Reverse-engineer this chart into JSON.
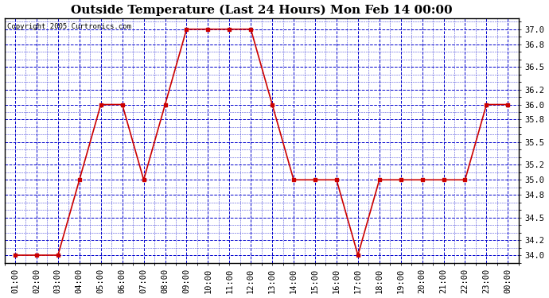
{
  "title": "Outside Temperature (Last 24 Hours) Mon Feb 14 00:00",
  "copyright": "Copyright 2005 Curtronics.com",
  "x_labels": [
    "01:00",
    "02:00",
    "03:00",
    "04:00",
    "05:00",
    "06:00",
    "07:00",
    "08:00",
    "09:00",
    "10:00",
    "11:00",
    "12:00",
    "13:00",
    "14:00",
    "15:00",
    "16:00",
    "17:00",
    "18:00",
    "19:00",
    "20:00",
    "21:00",
    "22:00",
    "23:00",
    "00:00"
  ],
  "y_values": [
    34.0,
    34.0,
    34.0,
    35.0,
    36.0,
    36.0,
    35.0,
    36.0,
    37.0,
    37.0,
    37.0,
    37.0,
    36.0,
    35.0,
    35.0,
    35.0,
    34.0,
    35.0,
    35.0,
    35.0,
    35.0,
    35.0,
    36.0,
    36.0
  ],
  "ylim": [
    33.9,
    37.15
  ],
  "y_ticks": [
    34.0,
    34.2,
    34.5,
    34.8,
    35.0,
    35.2,
    35.5,
    35.8,
    36.0,
    36.2,
    36.5,
    36.8,
    37.0
  ],
  "line_color": "#cc0000",
  "marker": "s",
  "marker_size": 2.5,
  "background_color": "#ffffff",
  "plot_bg_color": "#ffffff",
  "grid_color": "#0000cc",
  "title_fontsize": 11,
  "tick_fontsize": 7.5,
  "copyright_fontsize": 6.5
}
